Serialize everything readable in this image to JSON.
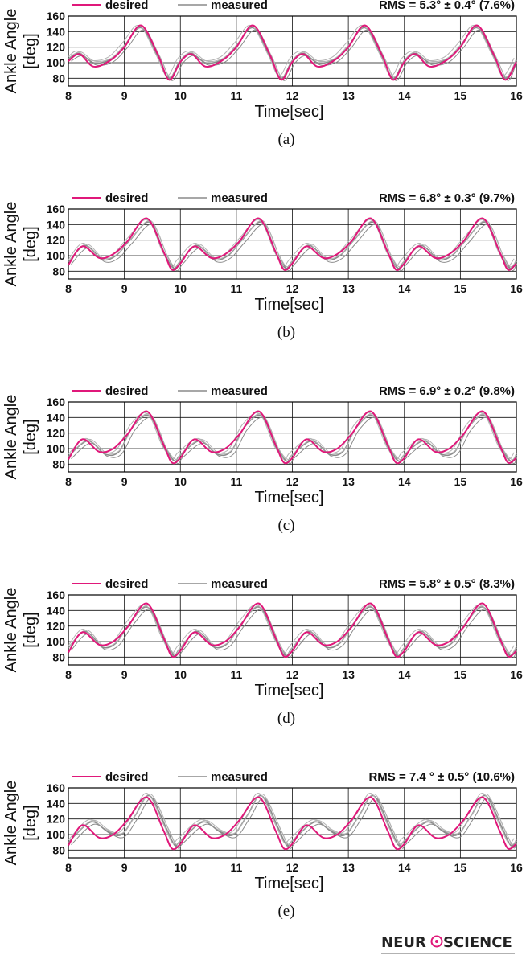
{
  "colors": {
    "desired": "#e0187a",
    "measured": "#8a8a8a",
    "measured_light": "#b3b3b3",
    "grid": "#111111",
    "logo_accent": "#e0187a"
  },
  "chart_data": [
    {
      "type": "line",
      "caption": "(a)",
      "legend": [
        "desired",
        "measured"
      ],
      "rms_label": "RMS = 5.3° ± 0.4° (7.6%)",
      "xlabel": "Time[sec]",
      "ylabel_line1": "Ankle Angle",
      "ylabel_line2": "[deg]",
      "xlim": [
        8,
        16
      ],
      "ylim": [
        70,
        160
      ],
      "xticks": [
        "8",
        "9",
        "10",
        "11",
        "12",
        "13",
        "14",
        "15",
        "16"
      ],
      "yticks": [
        "80",
        "100",
        "120",
        "140",
        "160"
      ],
      "series": [
        {
          "name": "desired",
          "x": [
            8.0,
            8.2,
            8.45,
            8.75,
            9.0,
            9.3,
            9.6,
            9.8,
            10.0,
            10.2,
            10.45,
            10.75,
            11.0,
            11.3,
            11.6,
            11.8,
            12.0,
            12.2,
            12.45,
            12.75,
            13.0,
            13.3,
            13.6,
            13.8,
            14.0,
            14.2,
            14.45,
            14.75,
            15.0,
            15.3,
            15.6,
            15.8,
            16.0
          ],
          "y": [
            102,
            111,
            95,
            103,
            120,
            148,
            110,
            78,
            101,
            111,
            95,
            103,
            120,
            148,
            110,
            78,
            101,
            111,
            95,
            103,
            120,
            148,
            110,
            78,
            101,
            111,
            95,
            103,
            120,
            148,
            110,
            78,
            101
          ]
        },
        {
          "name": "measured",
          "x": [
            8.0,
            8.2,
            8.45,
            8.75,
            9.0,
            9.3,
            9.6,
            9.8,
            10.0,
            10.2,
            10.45,
            10.75,
            11.0,
            11.3,
            11.6,
            11.8,
            12.0,
            12.2,
            12.45,
            12.75,
            13.0,
            13.3,
            13.6,
            13.8,
            14.0,
            14.2,
            14.45,
            14.75,
            15.0,
            15.3,
            15.6,
            15.8,
            16.0
          ],
          "y": [
            105,
            112,
            100,
            104,
            122,
            145,
            108,
            80,
            103,
            112,
            100,
            104,
            122,
            145,
            108,
            80,
            103,
            112,
            100,
            104,
            122,
            145,
            108,
            80,
            103,
            112,
            100,
            104,
            122,
            145,
            108,
            80,
            103
          ]
        }
      ]
    },
    {
      "type": "line",
      "caption": "(b)",
      "legend": [
        "desired",
        "measured"
      ],
      "rms_label": "RMS = 6.8° ± 0.3° (9.7%)",
      "xlabel": "Time[sec]",
      "ylabel_line1": "Ankle Angle",
      "ylabel_line2": "[deg]",
      "xlim": [
        8,
        16
      ],
      "ylim": [
        70,
        160
      ],
      "xticks": [
        "8",
        "9",
        "10",
        "11",
        "12",
        "13",
        "14",
        "15",
        "16"
      ],
      "yticks": [
        "80",
        "100",
        "120",
        "140",
        "160"
      ],
      "series": [
        {
          "name": "desired",
          "x": [
            8.0,
            8.25,
            8.55,
            8.8,
            9.05,
            9.4,
            9.7,
            9.85,
            10.0,
            10.25,
            10.55,
            10.8,
            11.05,
            11.4,
            11.7,
            11.85,
            12.0,
            12.25,
            12.55,
            12.8,
            13.05,
            13.4,
            13.7,
            13.85,
            14.0,
            14.25,
            14.55,
            14.8,
            15.05,
            15.4,
            15.7,
            15.85,
            16.0
          ],
          "y": [
            88,
            112,
            97,
            102,
            118,
            148,
            105,
            82,
            90,
            112,
            97,
            102,
            118,
            148,
            105,
            82,
            90,
            112,
            97,
            102,
            118,
            148,
            105,
            82,
            90,
            112,
            97,
            102,
            118,
            148,
            105,
            82,
            90
          ]
        },
        {
          "name": "measured",
          "x": [
            8.0,
            8.3,
            8.6,
            8.85,
            9.1,
            9.45,
            9.72,
            9.88,
            10.0,
            10.3,
            10.6,
            10.85,
            11.1,
            11.45,
            11.72,
            11.88,
            12.0,
            12.3,
            12.6,
            12.85,
            13.1,
            13.45,
            13.72,
            13.88,
            14.0,
            14.3,
            14.6,
            14.85,
            15.1,
            15.45,
            15.72,
            15.88,
            16.0
          ],
          "y": [
            92,
            113,
            95,
            100,
            120,
            143,
            102,
            84,
            93,
            113,
            95,
            100,
            120,
            143,
            102,
            84,
            93,
            113,
            95,
            100,
            120,
            143,
            102,
            84,
            93,
            113,
            95,
            100,
            120,
            143,
            102,
            84,
            93
          ]
        }
      ]
    },
    {
      "type": "line",
      "caption": "(c)",
      "legend": [
        "desired",
        "measured"
      ],
      "rms_label": "RMS = 6.9° ± 0.2° (9.8%)",
      "xlabel": "Time[sec]",
      "ylabel_line1": "Ankle Angle",
      "ylabel_line2": "[deg]",
      "xlim": [
        8,
        16
      ],
      "ylim": [
        70,
        160
      ],
      "xticks": [
        "8",
        "9",
        "10",
        "11",
        "12",
        "13",
        "14",
        "15",
        "16"
      ],
      "yticks": [
        "80",
        "100",
        "120",
        "140",
        "160"
      ],
      "series": [
        {
          "name": "desired",
          "x": [
            8.0,
            8.25,
            8.55,
            8.8,
            9.05,
            9.4,
            9.7,
            9.85,
            10.0,
            10.25,
            10.55,
            10.8,
            11.05,
            11.4,
            11.7,
            11.85,
            12.0,
            12.25,
            12.55,
            12.8,
            13.05,
            13.4,
            13.7,
            13.85,
            14.0,
            14.25,
            14.55,
            14.8,
            15.05,
            15.4,
            15.7,
            15.85,
            16.0
          ],
          "y": [
            86,
            112,
            96,
            100,
            118,
            148,
            105,
            82,
            88,
            112,
            96,
            100,
            118,
            148,
            105,
            82,
            88,
            112,
            96,
            100,
            118,
            148,
            105,
            82,
            88,
            112,
            96,
            100,
            118,
            148,
            105,
            82,
            88
          ]
        },
        {
          "name": "measured",
          "x": [
            8.0,
            8.35,
            8.65,
            8.9,
            9.15,
            9.45,
            9.72,
            9.9,
            10.0,
            10.35,
            10.65,
            10.9,
            11.15,
            11.45,
            11.72,
            11.9,
            12.0,
            12.35,
            12.65,
            12.9,
            13.15,
            13.45,
            13.72,
            13.9,
            14.0,
            14.35,
            14.65,
            14.9,
            15.15,
            15.45,
            15.72,
            15.9,
            16.0
          ],
          "y": [
            90,
            110,
            93,
            96,
            128,
            142,
            100,
            84,
            92,
            110,
            93,
            96,
            128,
            142,
            100,
            84,
            92,
            110,
            93,
            96,
            128,
            142,
            100,
            84,
            92,
            110,
            93,
            96,
            128,
            142,
            100,
            84,
            92
          ]
        }
      ]
    },
    {
      "type": "line",
      "caption": "(d)",
      "legend": [
        "desired",
        "measured"
      ],
      "rms_label": "RMS = 5.8° ± 0.5° (8.3%)",
      "xlabel": "Time[sec]",
      "ylabel_line1": "Ankle Angle",
      "ylabel_line2": "[deg]",
      "xlim": [
        8,
        16
      ],
      "ylim": [
        70,
        160
      ],
      "xticks": [
        "8",
        "9",
        "10",
        "11",
        "12",
        "13",
        "14",
        "15",
        "16"
      ],
      "yticks": [
        "80",
        "100",
        "120",
        "140",
        "160"
      ],
      "series": [
        {
          "name": "desired",
          "x": [
            8.0,
            8.25,
            8.55,
            8.8,
            9.05,
            9.4,
            9.7,
            9.85,
            10.0,
            10.25,
            10.55,
            10.8,
            11.05,
            11.4,
            11.7,
            11.85,
            12.0,
            12.25,
            12.55,
            12.8,
            13.05,
            13.4,
            13.7,
            13.85,
            14.0,
            14.25,
            14.55,
            14.8,
            15.05,
            15.4,
            15.7,
            15.85,
            16.0
          ],
          "y": [
            86,
            112,
            96,
            100,
            118,
            149,
            105,
            81,
            88,
            112,
            96,
            100,
            118,
            149,
            105,
            81,
            88,
            112,
            96,
            100,
            118,
            149,
            105,
            81,
            88,
            112,
            96,
            100,
            118,
            149,
            105,
            81,
            88
          ]
        },
        {
          "name": "measured",
          "x": [
            8.0,
            8.3,
            8.6,
            8.85,
            9.1,
            9.42,
            9.72,
            9.88,
            10.0,
            10.3,
            10.6,
            10.85,
            11.1,
            11.42,
            11.72,
            11.88,
            12.0,
            12.3,
            12.6,
            12.85,
            13.1,
            13.42,
            13.72,
            13.88,
            14.0,
            14.3,
            14.6,
            14.85,
            15.1,
            15.42,
            15.72,
            15.88,
            16.0
          ],
          "y": [
            92,
            113,
            93,
            98,
            124,
            144,
            100,
            82,
            92,
            113,
            93,
            98,
            124,
            144,
            100,
            82,
            92,
            113,
            93,
            98,
            124,
            144,
            100,
            82,
            92,
            113,
            93,
            98,
            124,
            144,
            100,
            82,
            92
          ]
        }
      ]
    },
    {
      "type": "line",
      "caption": "(e)",
      "legend": [
        "desired",
        "measured"
      ],
      "rms_label": "RMS = 7.4 ° ± 0.5° (10.6%)",
      "xlabel": "Time[sec]",
      "ylabel_line1": "Ankle Angle",
      "ylabel_line2": "[deg]",
      "xlim": [
        8,
        16
      ],
      "ylim": [
        70,
        160
      ],
      "xticks": [
        "8",
        "9",
        "10",
        "11",
        "12",
        "13",
        "14",
        "15",
        "16"
      ],
      "yticks": [
        "80",
        "100",
        "120",
        "140",
        "160"
      ],
      "series": [
        {
          "name": "desired",
          "x": [
            8.0,
            8.25,
            8.55,
            8.8,
            9.05,
            9.4,
            9.7,
            9.85,
            10.0,
            10.25,
            10.55,
            10.8,
            11.05,
            11.4,
            11.7,
            11.85,
            12.0,
            12.25,
            12.55,
            12.8,
            13.05,
            13.4,
            13.7,
            13.85,
            14.0,
            14.25,
            14.55,
            14.8,
            15.05,
            15.4,
            15.7,
            15.85,
            16.0
          ],
          "y": [
            86,
            112,
            96,
            100,
            118,
            148,
            105,
            82,
            88,
            112,
            96,
            100,
            118,
            148,
            105,
            82,
            88,
            112,
            96,
            100,
            118,
            148,
            105,
            82,
            88,
            112,
            96,
            100,
            118,
            148,
            105,
            82,
            88
          ]
        },
        {
          "name": "measured",
          "x": [
            8.0,
            8.4,
            8.7,
            8.95,
            9.2,
            9.45,
            9.75,
            9.9,
            10.0,
            10.4,
            10.7,
            10.95,
            11.2,
            11.45,
            11.75,
            11.9,
            12.0,
            12.4,
            12.7,
            12.95,
            13.2,
            13.45,
            13.75,
            13.9,
            14.0,
            14.4,
            14.7,
            14.95,
            15.2,
            15.45,
            15.75,
            15.9,
            16.0
          ],
          "y": [
            90,
            116,
            104,
            100,
            125,
            150,
            108,
            86,
            92,
            116,
            104,
            100,
            125,
            150,
            108,
            86,
            92,
            116,
            104,
            100,
            125,
            150,
            108,
            86,
            92,
            116,
            104,
            100,
            125,
            150,
            108,
            86,
            92
          ]
        }
      ]
    }
  ],
  "logo": {
    "text_left": "NEUR",
    "text_right": "SCIENCE"
  }
}
